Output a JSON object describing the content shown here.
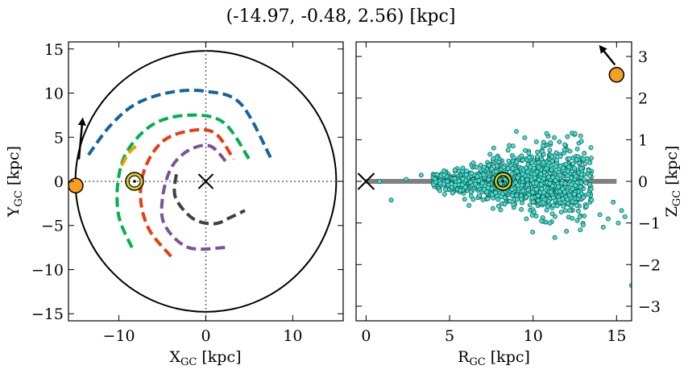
{
  "figure": {
    "title": "(-14.97, -0.48, 2.56) [kpc]"
  },
  "chart_data": [
    {
      "type": "scatter",
      "panel": "left",
      "xlabel": "X_GC [kpc]",
      "ylabel": "Y_GC [kpc]",
      "xlim": [
        -15.8,
        15.8
      ],
      "ylim": [
        -15.8,
        15.8
      ],
      "xticks": [
        -10,
        0,
        10
      ],
      "xtick_labels": [
        "−10",
        "0",
        "10"
      ],
      "yticks": [
        -15,
        -10,
        -5,
        0,
        5,
        10,
        15
      ],
      "ytick_labels": [
        "−15",
        "−10",
        "−5",
        "0",
        "5",
        "10",
        "15"
      ],
      "grid": false,
      "reference_lines": {
        "x": 0,
        "y": 0,
        "style": "dotted"
      },
      "outer_circle_radius": 15,
      "galactic_center": [
        0,
        0
      ],
      "sun": [
        -8.2,
        0
      ],
      "object": [
        -14.97,
        -0.48
      ],
      "velocity_arrow": {
        "from": [
          -14.6,
          2.5
        ],
        "to": [
          -14.2,
          6.8
        ]
      },
      "spiral_arms": [
        {
          "color": "#1464a0",
          "points": [
            [
              -13.5,
              3
            ],
            [
              -11,
              6.3
            ],
            [
              -8,
              8.8
            ],
            [
              -4,
              10.1
            ],
            [
              0,
              10.2
            ],
            [
              4,
              8.8
            ],
            [
              7.5,
              2.6
            ]
          ]
        },
        {
          "color": "#00b050",
          "points": [
            [
              -8.5,
              -7.5
            ],
            [
              -10,
              -4
            ],
            [
              -10.1,
              0
            ],
            [
              -9,
              3.5
            ],
            [
              -6,
              6.5
            ],
            [
              -2,
              7.5
            ],
            [
              2,
              6.7
            ],
            [
              5,
              2.5
            ]
          ]
        },
        {
          "color": "#e8a000",
          "points": [
            [
              -9.7,
              1.8
            ],
            [
              -8.7,
              3.4
            ],
            [
              -7.6,
              4.3
            ]
          ]
        },
        {
          "color": "#e83c10",
          "points": [
            [
              -4,
              -8.5
            ],
            [
              -6.5,
              -5.5
            ],
            [
              -7.5,
              -2
            ],
            [
              -7,
              1.5
            ],
            [
              -5,
              4.5
            ],
            [
              -2,
              5.7
            ],
            [
              1,
              5.5
            ],
            [
              3.2,
              2.5
            ]
          ]
        },
        {
          "color": "#7a5296",
          "points": [
            [
              2.2,
              -7.5
            ],
            [
              -2,
              -7.5
            ],
            [
              -4.7,
              -5
            ],
            [
              -5,
              -2
            ],
            [
              -4,
              1.5
            ],
            [
              -2,
              3.5
            ],
            [
              0.5,
              4
            ],
            [
              2.5,
              2
            ]
          ]
        },
        {
          "color": "#404040",
          "points": [
            [
              -3.4,
              0.8
            ],
            [
              -3.5,
              -1.8
            ],
            [
              -1.5,
              -4.2
            ],
            [
              1,
              -4.8
            ],
            [
              3,
              -4
            ],
            [
              4.5,
              -3.3
            ]
          ]
        }
      ]
    },
    {
      "type": "scatter",
      "panel": "right",
      "xlabel": "R_GC [kpc]",
      "ylabel": "Z_GC [kpc]",
      "xlim": [
        -0.6,
        15.9
      ],
      "ylim": [
        -3.35,
        3.35
      ],
      "xticks": [
        0,
        5,
        10,
        15
      ],
      "xtick_labels": [
        "0",
        "5",
        "10",
        "15"
      ],
      "yticks": [
        -3,
        -2,
        -1,
        0,
        1,
        2,
        3
      ],
      "ytick_labels": [
        "−3",
        "−2",
        "−1",
        "0",
        "1",
        "2",
        "3"
      ],
      "grid": false,
      "disk_line": {
        "from": [
          0,
          0
        ],
        "to": [
          15,
          0
        ],
        "color": "#808080"
      },
      "galactic_center": [
        0,
        0
      ],
      "sun": [
        8.2,
        0
      ],
      "object": [
        15.0,
        2.56
      ],
      "velocity_arrow": {
        "from": [
          14.9,
          2.8
        ],
        "to": [
          14.1,
          3.2
        ]
      },
      "star_color": "#40e0d0",
      "star_seed": 7,
      "star_count": 1200,
      "stars_explicit": [
        [
          1.5,
          -0.45
        ],
        [
          0.8,
          0.0
        ],
        [
          3.3,
          0.15
        ],
        [
          2.4,
          0.05
        ],
        [
          9.0,
          1.2
        ],
        [
          9.5,
          1.05
        ],
        [
          12.5,
          1.15
        ],
        [
          10.6,
          0.85
        ],
        [
          11.0,
          0.75
        ],
        [
          12.8,
          -0.85
        ],
        [
          13.2,
          -0.6
        ],
        [
          14.0,
          -0.8
        ],
        [
          14.5,
          -0.9
        ],
        [
          15.3,
          -0.7
        ],
        [
          15.5,
          -0.85
        ],
        [
          14.2,
          -1.1
        ],
        [
          12.0,
          -1.2
        ],
        [
          11.0,
          -1.0
        ],
        [
          11.3,
          -1.35
        ],
        [
          10.5,
          -0.95
        ],
        [
          9.6,
          -0.9
        ],
        [
          7.6,
          -0.65
        ],
        [
          15.9,
          -2.5
        ],
        [
          13.5,
          -0.45
        ],
        [
          14.8,
          -0.5
        ],
        [
          15.1,
          -1.0
        ],
        [
          13.0,
          -1.05
        ],
        [
          12.2,
          -0.7
        ],
        [
          8.5,
          0.75
        ],
        [
          10.2,
          0.95
        ]
      ]
    }
  ]
}
